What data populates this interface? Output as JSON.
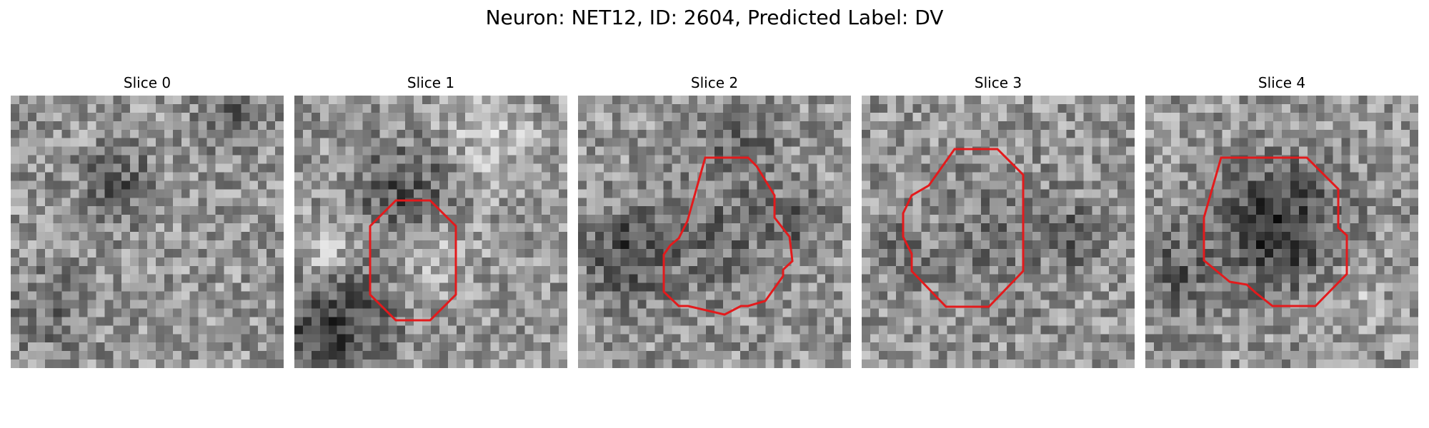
{
  "figure": {
    "title": "Neuron: NET12, ID: 2604, Predicted Label: DV"
  },
  "contour_color": "#e31a1c",
  "colormap": "gray",
  "panels": [
    {
      "title": "Slice 0",
      "has_contour": false
    },
    {
      "title": "Slice 1",
      "has_contour": true
    },
    {
      "title": "Slice 2",
      "has_contour": true
    },
    {
      "title": "Slice 3",
      "has_contour": true
    },
    {
      "title": "Slice 4",
      "has_contour": true
    }
  ]
}
